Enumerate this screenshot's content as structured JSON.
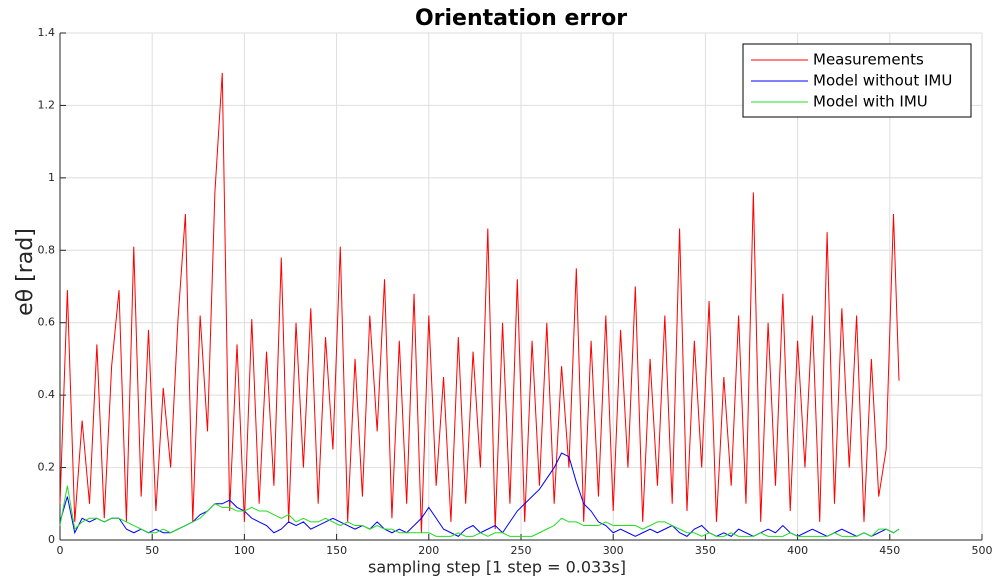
{
  "chart_data": {
    "type": "line",
    "title": "Orientation error",
    "xlabel": "sampling step [1 step = 0.033s]",
    "ylabel": "eθ [rad]",
    "xlim": [
      0,
      500
    ],
    "xticks": [
      0,
      50,
      100,
      150,
      200,
      250,
      300,
      350,
      400,
      450,
      500
    ],
    "ylim": [
      0,
      1.4
    ],
    "yticks": [
      0,
      0.2,
      0.4,
      0.6,
      0.8,
      1,
      1.2,
      1.4
    ],
    "grid": true,
    "legend": "upper right",
    "x": [
      0,
      4,
      8,
      12,
      16,
      20,
      24,
      28,
      32,
      36,
      40,
      44,
      48,
      52,
      56,
      60,
      64,
      68,
      72,
      76,
      80,
      84,
      88,
      92,
      96,
      100,
      104,
      108,
      112,
      116,
      120,
      124,
      128,
      132,
      136,
      140,
      144,
      148,
      152,
      156,
      160,
      164,
      168,
      172,
      176,
      180,
      184,
      188,
      192,
      196,
      200,
      204,
      208,
      212,
      216,
      220,
      224,
      228,
      232,
      236,
      240,
      244,
      248,
      252,
      256,
      260,
      264,
      268,
      272,
      276,
      280,
      284,
      288,
      292,
      296,
      300,
      304,
      308,
      312,
      316,
      320,
      324,
      328,
      332,
      336,
      340,
      344,
      348,
      352,
      356,
      360,
      364,
      368,
      372,
      376,
      380,
      384,
      388,
      392,
      396,
      400,
      404,
      408,
      412,
      416,
      420,
      424,
      428,
      432,
      436,
      440,
      444,
      448,
      452,
      455
    ],
    "series": [
      {
        "name": "Measurements",
        "color": "#ff0000",
        "values": [
          0.1,
          0.69,
          0.05,
          0.33,
          0.1,
          0.54,
          0.06,
          0.48,
          0.69,
          0.05,
          0.81,
          0.12,
          0.58,
          0.08,
          0.42,
          0.2,
          0.61,
          0.9,
          0.05,
          0.62,
          0.3,
          0.96,
          1.29,
          0.08,
          0.54,
          0.05,
          0.61,
          0.1,
          0.52,
          0.15,
          0.78,
          0.05,
          0.6,
          0.2,
          0.64,
          0.1,
          0.56,
          0.25,
          0.81,
          0.05,
          0.5,
          0.12,
          0.62,
          0.3,
          0.72,
          0.06,
          0.55,
          0.1,
          0.68,
          0.02,
          0.62,
          0.15,
          0.45,
          0.05,
          0.56,
          0.1,
          0.52,
          0.2,
          0.86,
          0.03,
          0.6,
          0.1,
          0.72,
          0.05,
          0.55,
          0.15,
          0.6,
          0.1,
          0.48,
          0.2,
          0.75,
          0.05,
          0.55,
          0.12,
          0.62,
          0.08,
          0.58,
          0.2,
          0.7,
          0.05,
          0.5,
          0.15,
          0.62,
          0.1,
          0.86,
          0.08,
          0.55,
          0.2,
          0.66,
          0.05,
          0.45,
          0.15,
          0.62,
          0.1,
          0.96,
          0.05,
          0.6,
          0.15,
          0.68,
          0.08,
          0.55,
          0.2,
          0.62,
          0.05,
          0.85,
          0.1,
          0.64,
          0.2,
          0.62,
          0.05,
          0.5,
          0.12,
          0.25,
          0.9,
          0.44
        ]
      },
      {
        "name": "Model without IMU",
        "color": "#0000ff",
        "values": [
          0.05,
          0.12,
          0.02,
          0.06,
          0.05,
          0.06,
          0.05,
          0.06,
          0.06,
          0.03,
          0.02,
          0.03,
          0.02,
          0.03,
          0.02,
          0.02,
          0.03,
          0.04,
          0.05,
          0.07,
          0.08,
          0.1,
          0.1,
          0.11,
          0.09,
          0.08,
          0.06,
          0.05,
          0.04,
          0.02,
          0.03,
          0.05,
          0.04,
          0.05,
          0.03,
          0.04,
          0.05,
          0.06,
          0.05,
          0.04,
          0.03,
          0.04,
          0.03,
          0.05,
          0.03,
          0.02,
          0.03,
          0.02,
          0.04,
          0.06,
          0.09,
          0.06,
          0.03,
          0.02,
          0.01,
          0.03,
          0.04,
          0.02,
          0.03,
          0.04,
          0.02,
          0.05,
          0.08,
          0.1,
          0.12,
          0.14,
          0.17,
          0.2,
          0.24,
          0.23,
          0.16,
          0.1,
          0.08,
          0.05,
          0.04,
          0.02,
          0.03,
          0.02,
          0.01,
          0.02,
          0.03,
          0.02,
          0.03,
          0.04,
          0.02,
          0.01,
          0.03,
          0.04,
          0.02,
          0.01,
          0.02,
          0.01,
          0.03,
          0.02,
          0.01,
          0.02,
          0.03,
          0.02,
          0.04,
          0.02,
          0.01,
          0.02,
          0.03,
          0.02,
          0.01,
          0.02,
          0.03,
          0.02,
          0.01,
          0.02,
          0.01,
          0.02,
          0.03,
          0.02,
          0.03
        ]
      },
      {
        "name": "Model with IMU",
        "color": "#22dd22",
        "values": [
          0.04,
          0.15,
          0.03,
          0.05,
          0.06,
          0.06,
          0.05,
          0.06,
          0.06,
          0.05,
          0.04,
          0.03,
          0.02,
          0.02,
          0.03,
          0.02,
          0.03,
          0.04,
          0.05,
          0.06,
          0.08,
          0.1,
          0.09,
          0.09,
          0.08,
          0.08,
          0.09,
          0.08,
          0.08,
          0.07,
          0.06,
          0.07,
          0.05,
          0.06,
          0.05,
          0.05,
          0.06,
          0.05,
          0.04,
          0.05,
          0.04,
          0.04,
          0.03,
          0.04,
          0.03,
          0.03,
          0.02,
          0.02,
          0.02,
          0.02,
          0.02,
          0.01,
          0.01,
          0.01,
          0.02,
          0.01,
          0.01,
          0.02,
          0.01,
          0.02,
          0.02,
          0.01,
          0.01,
          0.01,
          0.01,
          0.02,
          0.03,
          0.04,
          0.06,
          0.05,
          0.05,
          0.04,
          0.04,
          0.04,
          0.05,
          0.04,
          0.04,
          0.04,
          0.04,
          0.03,
          0.04,
          0.05,
          0.05,
          0.04,
          0.03,
          0.02,
          0.02,
          0.01,
          0.02,
          0.01,
          0.01,
          0.02,
          0.01,
          0.01,
          0.01,
          0.02,
          0.01,
          0.01,
          0.01,
          0.02,
          0.01,
          0.01,
          0.01,
          0.01,
          0.01,
          0.02,
          0.01,
          0.01,
          0.01,
          0.02,
          0.01,
          0.03,
          0.03,
          0.02,
          0.03
        ]
      }
    ]
  }
}
